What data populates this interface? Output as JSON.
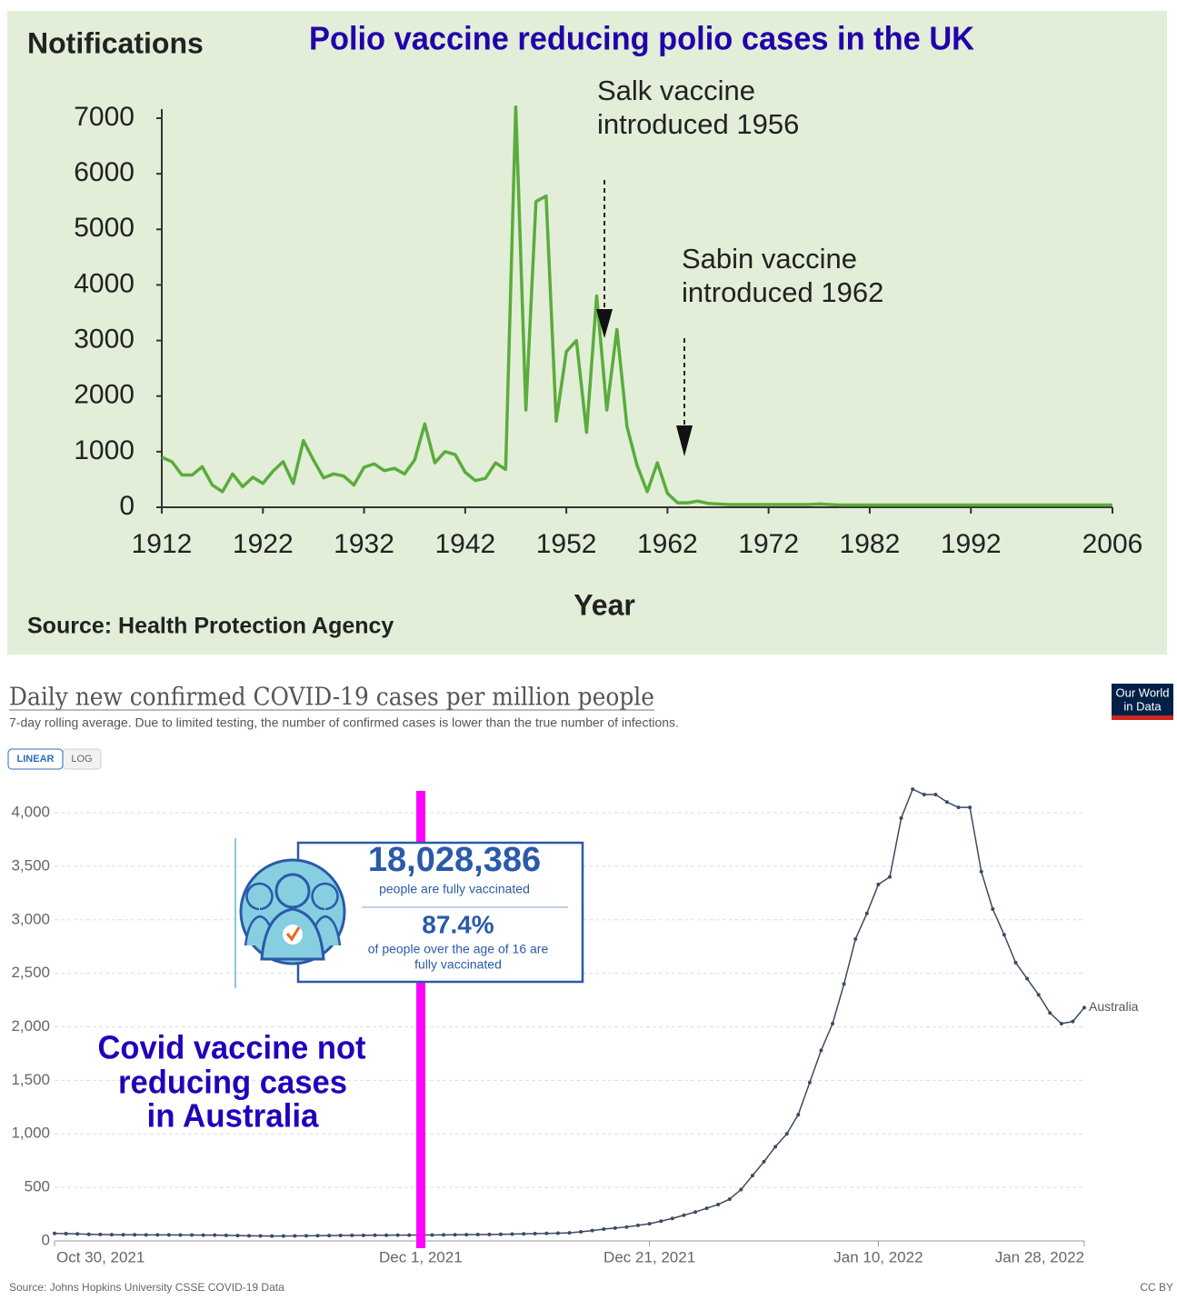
{
  "chart_data": [
    {
      "type": "line",
      "title": "Polio vaccine reducing polio cases in the UK",
      "ylabel": "Notifications",
      "xlabel": "Year",
      "source": "Source: Health Protection Agency",
      "annotations": [
        [
          "Salk vaccine",
          "introduced 1956"
        ],
        [
          "Sabin vaccine",
          "introduced 1962"
        ]
      ],
      "x": [
        1912,
        1913,
        1914,
        1915,
        1916,
        1917,
        1918,
        1919,
        1920,
        1921,
        1922,
        1923,
        1924,
        1925,
        1926,
        1927,
        1928,
        1929,
        1930,
        1931,
        1932,
        1933,
        1934,
        1935,
        1936,
        1937,
        1938,
        1939,
        1940,
        1941,
        1942,
        1943,
        1944,
        1945,
        1946,
        1947,
        1948,
        1949,
        1950,
        1951,
        1952,
        1953,
        1954,
        1955,
        1956,
        1957,
        1958,
        1959,
        1960,
        1961,
        1962,
        1963,
        1964,
        1965,
        1966,
        1967,
        1968,
        1969,
        1970,
        1971,
        1972,
        1973,
        1974,
        1975,
        1976,
        1977,
        1978,
        1979,
        1980,
        1981,
        1982,
        1983,
        1984,
        1985,
        1986,
        1987,
        1988,
        1989,
        1990,
        1991,
        1992,
        1993,
        1994,
        1995,
        1996,
        1997,
        1998,
        1999,
        2000,
        2001,
        2002,
        2003,
        2004,
        2005,
        2006
      ],
      "values": [
        900,
        820,
        580,
        580,
        730,
        400,
        280,
        600,
        370,
        540,
        430,
        650,
        820,
        430,
        1200,
        850,
        530,
        600,
        560,
        400,
        720,
        780,
        660,
        700,
        600,
        850,
        1500,
        800,
        1000,
        950,
        630,
        480,
        520,
        800,
        680,
        7200,
        1750,
        5500,
        5600,
        1550,
        2800,
        3000,
        1350,
        3800,
        1750,
        3200,
        1450,
        750,
        280,
        800,
        250,
        80,
        80,
        110,
        70,
        60,
        50,
        50,
        50,
        50,
        50,
        50,
        50,
        50,
        50,
        60,
        50,
        40,
        40,
        40,
        40,
        40,
        40,
        40,
        40,
        40,
        40,
        40,
        40,
        40,
        40,
        40,
        40,
        40,
        40,
        40,
        40,
        40,
        40,
        40,
        40,
        40,
        40,
        40,
        40
      ],
      "color": "#5aac3c",
      "xlim": [
        1912,
        2006
      ],
      "xticks": [
        1912,
        1922,
        1932,
        1942,
        1952,
        1962,
        1972,
        1982,
        1992,
        2006
      ],
      "ylim": [
        0,
        7000
      ],
      "yticks": [
        0,
        1000,
        2000,
        3000,
        4000,
        5000,
        6000,
        7000
      ],
      "grid": false
    },
    {
      "type": "line",
      "title": "Daily new confirmed COVID-19 cases per million people",
      "subtitle": "7-day rolling average. Due to limited testing, the number of confirmed cases is lower than the true number of infections.",
      "toggle": [
        "LINEAR",
        "LOG"
      ],
      "logo": [
        "Our World",
        "in Data"
      ],
      "source": "Source: Johns Hopkins University CSSE COVID-19 Data",
      "license": "CC BY",
      "annotation": [
        "Covid vaccine not",
        "reducing cases",
        "in Australia"
      ],
      "infographic": {
        "count": "18,028,386",
        "count_text": "people are fully vaccinated",
        "share": "87.4%",
        "share_text": [
          "of people over the age of 16 are",
          "fully vaccinated"
        ]
      },
      "categories": [
        "Oct 30, 2021",
        null,
        null,
        null,
        null,
        null,
        null,
        null,
        null,
        null,
        null,
        null,
        null,
        null,
        null,
        null,
        null,
        null,
        null,
        null,
        null,
        null,
        null,
        null,
        null,
        null,
        null,
        null,
        null,
        null,
        null,
        null,
        "Dec 1, 2021",
        null,
        null,
        null,
        null,
        null,
        null,
        null,
        null,
        null,
        null,
        null,
        null,
        null,
        null,
        null,
        null,
        null,
        null,
        null,
        "Dec 21, 2021",
        null,
        null,
        null,
        null,
        null,
        null,
        null,
        null,
        null,
        null,
        null,
        null,
        null,
        null,
        null,
        null,
        null,
        null,
        null,
        "Jan 10, 2022",
        null,
        null,
        null,
        null,
        null,
        null,
        null,
        null,
        null,
        null,
        null,
        null,
        null,
        null,
        null,
        null,
        null,
        "Jan 28, 2022"
      ],
      "series": [
        {
          "name": "Australia",
          "color": "#3d4b60",
          "values": [
            70,
            68,
            66,
            62,
            60,
            58,
            57,
            57,
            56,
            56,
            56,
            55,
            55,
            54,
            54,
            52,
            50,
            48,
            47,
            46,
            46,
            47,
            48,
            49,
            50,
            51,
            52,
            52,
            53,
            53,
            54,
            54,
            55,
            55,
            56,
            57,
            58,
            59,
            60,
            62,
            64,
            66,
            68,
            70,
            72,
            75,
            85,
            97,
            110,
            120,
            130,
            145,
            160,
            185,
            210,
            240,
            270,
            305,
            340,
            390,
            480,
            610,
            740,
            880,
            1000,
            1180,
            1480,
            1780,
            2030,
            2400,
            2820,
            3060,
            3330,
            3400,
            3950,
            4220,
            4170,
            4170,
            4100,
            4050,
            4050,
            3450,
            3100,
            2860,
            2600,
            2450,
            2300,
            2130,
            2030,
            2050,
            2180
          ]
        }
      ],
      "ylim": [
        0,
        4250
      ],
      "yticks": [
        0,
        500,
        {
          "value": 1000,
          "label": "1,000"
        },
        {
          "value": 1500,
          "label": "1,500"
        },
        {
          "value": 2000,
          "label": "2,000"
        },
        {
          "value": 2500,
          "label": "2,500"
        },
        {
          "value": 3000,
          "label": "3,000"
        },
        {
          "value": 3500,
          "label": "3,500"
        },
        {
          "value": 4000,
          "label": "4,000"
        }
      ],
      "grid": true
    }
  ]
}
